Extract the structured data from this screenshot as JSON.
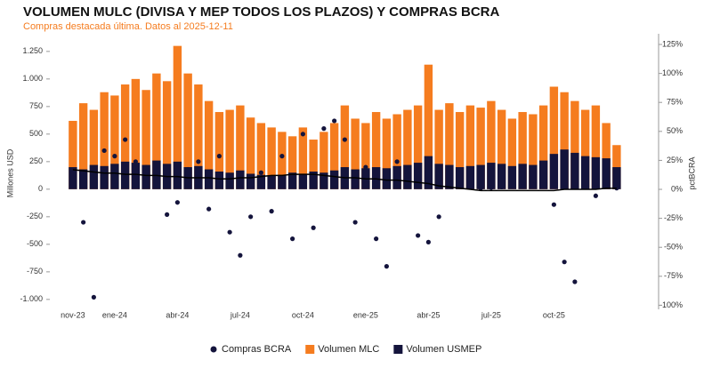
{
  "chart_data": {
    "type": "bar",
    "title": "VOLUMEN MULC (DIVISA Y MEP TODOS LOS PLAZOS) Y COMPRAS BCRA",
    "subtitle": "Compras destacada última. Datos al 2025-12-11",
    "ylabel": "Millones USD",
    "y2label": "pctBCRA",
    "categories": [
      "nov-23",
      null,
      null,
      null,
      "ene-24",
      null,
      null,
      null,
      null,
      null,
      "abr-24",
      null,
      null,
      null,
      null,
      null,
      "jul-24",
      null,
      null,
      null,
      null,
      null,
      "oct-24",
      null,
      null,
      null,
      null,
      null,
      "ene-25",
      null,
      null,
      null,
      null,
      null,
      "abr-25",
      null,
      null,
      null,
      null,
      null,
      "jul-25",
      null,
      null,
      null,
      null,
      null,
      "oct-25",
      null,
      null,
      null,
      null,
      null,
      null
    ],
    "ylim": [
      -1090,
      1410
    ],
    "yticks": [
      {
        "value": 1250,
        "label": "1.250"
      },
      {
        "value": 1000,
        "label": "1.000"
      },
      750,
      500,
      250,
      0,
      -250,
      -500,
      -750,
      {
        "value": -1000,
        "label": "-1.000"
      }
    ],
    "y2lim": [
      -103.5,
      134.2
    ],
    "y2ticks": [
      {
        "value": 125,
        "label": "125%"
      },
      {
        "value": 100,
        "label": "100%"
      },
      {
        "value": 75,
        "label": "75%"
      },
      {
        "value": 50,
        "label": "50%"
      },
      {
        "value": 25,
        "label": "25%"
      },
      {
        "value": 0,
        "label": "0%"
      },
      {
        "value": -25,
        "label": "-25%"
      },
      {
        "value": -50,
        "label": "-50%"
      },
      {
        "value": -75,
        "label": "-75%"
      },
      {
        "value": -100,
        "label": "-100%"
      }
    ],
    "legend": "bottom",
    "series": [
      {
        "name": "Compras BCRA",
        "type": "scatter",
        "color": "#14143c",
        "values": [
          50,
          -300,
          -980,
          350,
          300,
          450,
          250,
          200,
          150,
          -230,
          -120,
          180,
          250,
          -180,
          300,
          -390,
          -600,
          -250,
          150,
          -200,
          300,
          -450,
          500,
          -350,
          550,
          620,
          450,
          -300,
          200,
          -450,
          -700,
          250,
          150,
          -420,
          -480,
          -250,
          50,
          30,
          20,
          10,
          15,
          20,
          30,
          25,
          40,
          50,
          -140,
          -660,
          -840,
          20,
          -60,
          30,
          10
        ]
      },
      {
        "name": "Volumen MLC",
        "type": "bar",
        "color": "#f57c1f",
        "values": [
          620,
          780,
          720,
          880,
          850,
          950,
          1000,
          900,
          1050,
          980,
          1300,
          1050,
          950,
          800,
          700,
          720,
          760,
          650,
          600,
          560,
          520,
          480,
          560,
          450,
          520,
          600,
          760,
          640,
          600,
          700,
          640,
          680,
          720,
          760,
          1130,
          720,
          780,
          700,
          760,
          740,
          800,
          720,
          640,
          700,
          680,
          760,
          930,
          880,
          800,
          720,
          760,
          600,
          400
        ]
      },
      {
        "name": "Volumen USMEP",
        "type": "bar",
        "color": "#14143c",
        "values": [
          200,
          180,
          220,
          210,
          230,
          250,
          240,
          220,
          260,
          230,
          250,
          200,
          210,
          180,
          160,
          150,
          170,
          140,
          130,
          120,
          130,
          150,
          140,
          160,
          150,
          170,
          200,
          180,
          190,
          200,
          190,
          210,
          220,
          240,
          300,
          230,
          220,
          200,
          210,
          220,
          240,
          230,
          210,
          230,
          220,
          260,
          320,
          360,
          330,
          300,
          290,
          280,
          200
        ]
      },
      {
        "type": "line",
        "axis": "y2",
        "color": "#000000",
        "values": [
          17,
          16,
          15,
          14,
          14,
          13,
          13,
          12,
          12,
          11,
          11,
          10,
          10,
          10,
          9,
          9,
          10,
          10,
          11,
          12,
          12,
          13,
          13,
          13,
          12,
          11,
          10,
          10,
          9,
          9,
          8,
          8,
          7,
          6,
          5,
          3,
          2,
          1,
          0,
          -1,
          -1,
          -1,
          -1,
          -1,
          -1,
          -1,
          -1,
          0,
          0,
          0,
          0,
          1,
          1
        ]
      }
    ]
  }
}
